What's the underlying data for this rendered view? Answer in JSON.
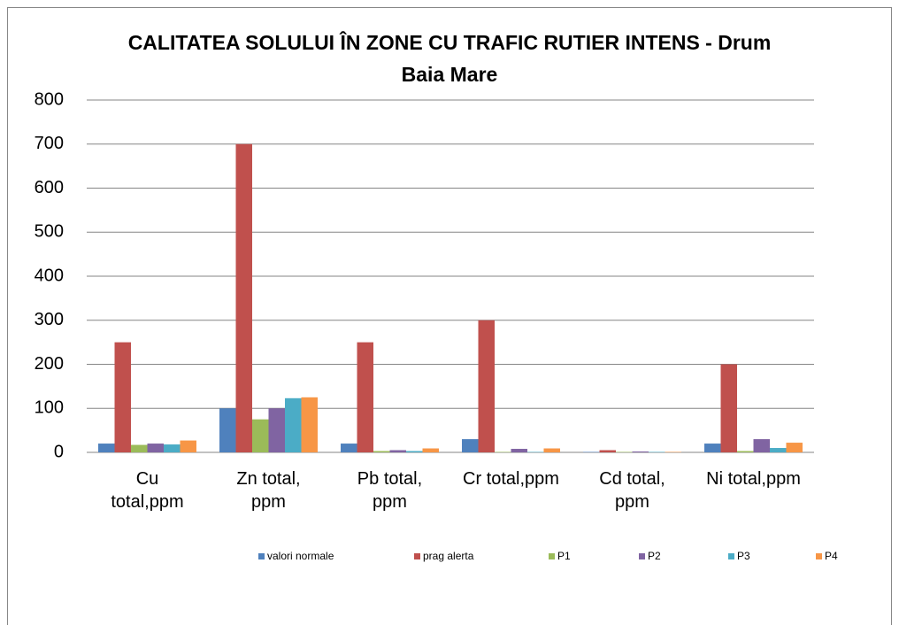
{
  "chart_data": {
    "type": "bar",
    "title": "CALITATEA SOLULUI ÎN ZONE CU TRAFIC RUTIER INTENS - Drum Baia Mare",
    "categories": [
      "Cu\ntotal,ppm",
      "Zn total,\nppm",
      "Pb total,\nppm",
      "Cr total,ppm",
      "Cd total,\nppm",
      "Ni total,ppm"
    ],
    "series": [
      {
        "name": "valori normale",
        "color": "#4f81bd",
        "values": [
          20,
          100,
          20,
          30,
          1,
          20
        ]
      },
      {
        "name": "prag alerta",
        "color": "#c0504d",
        "values": [
          250,
          700,
          250,
          300,
          5,
          200
        ]
      },
      {
        "name": "P1",
        "color": "#9bbb59",
        "values": [
          17,
          75,
          3,
          1,
          1,
          3
        ]
      },
      {
        "name": "P2",
        "color": "#8064a2",
        "values": [
          20,
          100,
          5,
          8,
          2,
          30
        ]
      },
      {
        "name": "P3",
        "color": "#4bacc6",
        "values": [
          18,
          123,
          3,
          1,
          1,
          10
        ]
      },
      {
        "name": "P4",
        "color": "#f79646",
        "values": [
          27,
          125,
          9,
          9,
          1,
          22
        ]
      }
    ],
    "ylim": [
      0,
      800
    ],
    "yticks": [
      0,
      100,
      200,
      300,
      400,
      500,
      600,
      700,
      800
    ],
    "grid": true
  }
}
